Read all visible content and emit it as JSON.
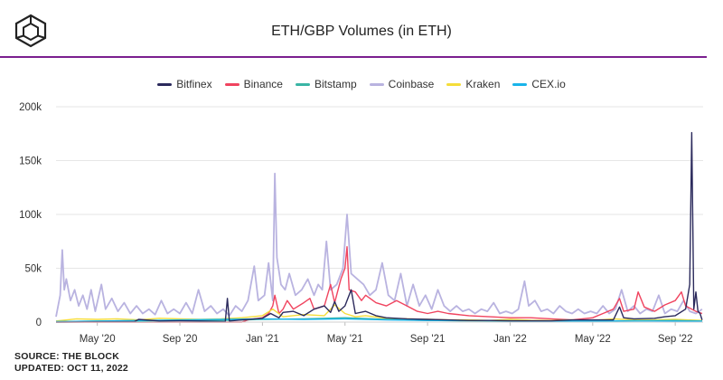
{
  "header": {
    "title": "ETH/GBP Volumes (in ETH)"
  },
  "footer": {
    "source": "SOURCE: THE BLOCK",
    "updated": "UPDATED: OCT 11, 2022"
  },
  "colors": {
    "accent_rule": "#7b1f8f",
    "gridline": "#e6e6e6"
  },
  "chart_data": {
    "type": "line",
    "title": "ETH/GBP Volumes (in ETH)",
    "xlabel": "",
    "ylabel": "",
    "ylim": [
      0,
      200000
    ],
    "y_ticks": [
      0,
      50000,
      100000,
      150000,
      200000
    ],
    "y_tick_labels": [
      "0",
      "50k",
      "100k",
      "150k",
      "200k"
    ],
    "x_tick_labels": [
      "May '20",
      "Sep '20",
      "Jan '21",
      "May '21",
      "Sep '21",
      "Jan '22",
      "May '22",
      "Sep '22"
    ],
    "x_tick_months": [
      2,
      6,
      10,
      14,
      18,
      22,
      26,
      30
    ],
    "x_range_months": [
      0.0,
      31.35
    ],
    "legend_position": "top-center",
    "series": [
      {
        "name": "Bitfinex",
        "color": "#2b2a5c",
        "points": [
          [
            0,
            0
          ],
          [
            3.8,
            500
          ],
          [
            4,
            2500
          ],
          [
            5,
            1000
          ],
          [
            6,
            1200
          ],
          [
            7,
            1000
          ],
          [
            8.2,
            500
          ],
          [
            8.3,
            22000
          ],
          [
            8.4,
            1000
          ],
          [
            9,
            2000
          ],
          [
            10,
            3500
          ],
          [
            10.4,
            8000
          ],
          [
            10.8,
            4000
          ],
          [
            11,
            9000
          ],
          [
            11.5,
            10000
          ],
          [
            12,
            6000
          ],
          [
            12.5,
            12000
          ],
          [
            13,
            15000
          ],
          [
            13.3,
            9000
          ],
          [
            13.5,
            19000
          ],
          [
            13.7,
            10000
          ],
          [
            14,
            15000
          ],
          [
            14.3,
            30000
          ],
          [
            14.5,
            8000
          ],
          [
            15,
            10000
          ],
          [
            15.5,
            6000
          ],
          [
            16,
            4000
          ],
          [
            17,
            3000
          ],
          [
            18,
            2500
          ],
          [
            19,
            2000
          ],
          [
            20,
            1500
          ],
          [
            21,
            1500
          ],
          [
            22,
            1200
          ],
          [
            23,
            1200
          ],
          [
            24,
            1200
          ],
          [
            25,
            2000
          ],
          [
            26,
            2000
          ],
          [
            27,
            2000
          ],
          [
            27.3,
            14000
          ],
          [
            27.5,
            4000
          ],
          [
            28,
            3000
          ],
          [
            29,
            3500
          ],
          [
            29.5,
            5000
          ],
          [
            30,
            6000
          ],
          [
            30.5,
            12000
          ],
          [
            30.7,
            35000
          ],
          [
            30.8,
            176000
          ],
          [
            30.9,
            12000
          ],
          [
            31,
            28000
          ],
          [
            31.1,
            10000
          ],
          [
            31.2,
            8000
          ],
          [
            31.3,
            2000
          ]
        ]
      },
      {
        "name": "Binance",
        "color": "#f0445f",
        "points": [
          [
            0,
            0
          ],
          [
            9,
            0
          ],
          [
            9.3,
            2000
          ],
          [
            10,
            4000
          ],
          [
            10.3,
            8000
          ],
          [
            10.5,
            15000
          ],
          [
            10.6,
            25000
          ],
          [
            10.8,
            8000
          ],
          [
            11,
            12000
          ],
          [
            11.2,
            20000
          ],
          [
            11.5,
            12000
          ],
          [
            12,
            18000
          ],
          [
            12.3,
            22000
          ],
          [
            12.5,
            12000
          ],
          [
            13,
            15000
          ],
          [
            13.3,
            35000
          ],
          [
            13.5,
            18000
          ],
          [
            13.8,
            40000
          ],
          [
            14,
            50000
          ],
          [
            14.1,
            70000
          ],
          [
            14.2,
            30000
          ],
          [
            14.5,
            28000
          ],
          [
            14.8,
            20000
          ],
          [
            15,
            25000
          ],
          [
            15.5,
            18000
          ],
          [
            16,
            15000
          ],
          [
            16.5,
            20000
          ],
          [
            17,
            15000
          ],
          [
            17.5,
            10000
          ],
          [
            18,
            8000
          ],
          [
            18.5,
            10000
          ],
          [
            19,
            8000
          ],
          [
            20,
            6000
          ],
          [
            21,
            5000
          ],
          [
            22,
            4000
          ],
          [
            23,
            4000
          ],
          [
            24,
            3000
          ],
          [
            25,
            2000
          ],
          [
            25.5,
            3000
          ],
          [
            26,
            4000
          ],
          [
            26.5,
            8000
          ],
          [
            27,
            12000
          ],
          [
            27.3,
            22000
          ],
          [
            27.5,
            10000
          ],
          [
            28,
            12000
          ],
          [
            28.2,
            28000
          ],
          [
            28.5,
            14000
          ],
          [
            29,
            10000
          ],
          [
            29.5,
            16000
          ],
          [
            30,
            20000
          ],
          [
            30.3,
            28000
          ],
          [
            30.5,
            15000
          ],
          [
            31,
            10000
          ],
          [
            31.3,
            8000
          ]
        ]
      },
      {
        "name": "Bitstamp",
        "color": "#3ab5a5",
        "points": [
          [
            0,
            500
          ],
          [
            2,
            800
          ],
          [
            4,
            1000
          ],
          [
            6,
            1500
          ],
          [
            8,
            1500
          ],
          [
            10,
            2500
          ],
          [
            12,
            3000
          ],
          [
            14,
            4000
          ],
          [
            16,
            2500
          ],
          [
            18,
            1500
          ],
          [
            20,
            1200
          ],
          [
            22,
            1000
          ],
          [
            24,
            1000
          ],
          [
            26,
            1000
          ],
          [
            28,
            1200
          ],
          [
            30,
            1500
          ],
          [
            31.3,
            1000
          ]
        ]
      },
      {
        "name": "Coinbase",
        "color": "#b9b3e0",
        "points": [
          [
            0,
            5000
          ],
          [
            0.2,
            25000
          ],
          [
            0.3,
            67000
          ],
          [
            0.4,
            30000
          ],
          [
            0.5,
            40000
          ],
          [
            0.7,
            20000
          ],
          [
            0.9,
            30000
          ],
          [
            1.1,
            15000
          ],
          [
            1.3,
            25000
          ],
          [
            1.5,
            12000
          ],
          [
            1.7,
            30000
          ],
          [
            1.9,
            10000
          ],
          [
            2.2,
            35000
          ],
          [
            2.4,
            12000
          ],
          [
            2.7,
            22000
          ],
          [
            3,
            10000
          ],
          [
            3.3,
            18000
          ],
          [
            3.6,
            8000
          ],
          [
            3.9,
            15000
          ],
          [
            4.2,
            8000
          ],
          [
            4.5,
            12000
          ],
          [
            4.8,
            7000
          ],
          [
            5.1,
            20000
          ],
          [
            5.4,
            8000
          ],
          [
            5.7,
            12000
          ],
          [
            6,
            8000
          ],
          [
            6.3,
            18000
          ],
          [
            6.6,
            8000
          ],
          [
            6.9,
            30000
          ],
          [
            7.2,
            10000
          ],
          [
            7.5,
            15000
          ],
          [
            7.8,
            8000
          ],
          [
            8.1,
            12000
          ],
          [
            8.4,
            6000
          ],
          [
            8.7,
            15000
          ],
          [
            9,
            10000
          ],
          [
            9.3,
            20000
          ],
          [
            9.6,
            52000
          ],
          [
            9.8,
            20000
          ],
          [
            10.1,
            25000
          ],
          [
            10.3,
            55000
          ],
          [
            10.5,
            20000
          ],
          [
            10.6,
            138000
          ],
          [
            10.7,
            60000
          ],
          [
            10.9,
            35000
          ],
          [
            11.1,
            30000
          ],
          [
            11.3,
            45000
          ],
          [
            11.6,
            25000
          ],
          [
            11.9,
            30000
          ],
          [
            12.2,
            40000
          ],
          [
            12.5,
            25000
          ],
          [
            12.7,
            35000
          ],
          [
            12.9,
            30000
          ],
          [
            13.1,
            75000
          ],
          [
            13.3,
            30000
          ],
          [
            13.6,
            35000
          ],
          [
            13.9,
            50000
          ],
          [
            14.1,
            100000
          ],
          [
            14.3,
            45000
          ],
          [
            14.6,
            40000
          ],
          [
            14.9,
            35000
          ],
          [
            15.2,
            25000
          ],
          [
            15.5,
            30000
          ],
          [
            15.8,
            55000
          ],
          [
            16.1,
            25000
          ],
          [
            16.4,
            20000
          ],
          [
            16.7,
            45000
          ],
          [
            17,
            15000
          ],
          [
            17.3,
            35000
          ],
          [
            17.6,
            15000
          ],
          [
            17.9,
            25000
          ],
          [
            18.2,
            12000
          ],
          [
            18.5,
            30000
          ],
          [
            18.8,
            15000
          ],
          [
            19.1,
            10000
          ],
          [
            19.4,
            15000
          ],
          [
            19.7,
            10000
          ],
          [
            20,
            12000
          ],
          [
            20.3,
            8000
          ],
          [
            20.6,
            12000
          ],
          [
            20.9,
            10000
          ],
          [
            21.2,
            18000
          ],
          [
            21.5,
            8000
          ],
          [
            21.8,
            10000
          ],
          [
            22.1,
            8000
          ],
          [
            22.4,
            12000
          ],
          [
            22.7,
            38000
          ],
          [
            22.9,
            15000
          ],
          [
            23.2,
            20000
          ],
          [
            23.5,
            10000
          ],
          [
            23.8,
            12000
          ],
          [
            24.1,
            8000
          ],
          [
            24.4,
            15000
          ],
          [
            24.7,
            10000
          ],
          [
            25,
            8000
          ],
          [
            25.3,
            12000
          ],
          [
            25.6,
            8000
          ],
          [
            25.9,
            10000
          ],
          [
            26.2,
            8000
          ],
          [
            26.5,
            15000
          ],
          [
            26.8,
            8000
          ],
          [
            27.1,
            12000
          ],
          [
            27.4,
            30000
          ],
          [
            27.7,
            10000
          ],
          [
            28,
            15000
          ],
          [
            28.3,
            8000
          ],
          [
            28.6,
            12000
          ],
          [
            28.9,
            10000
          ],
          [
            29.2,
            25000
          ],
          [
            29.5,
            8000
          ],
          [
            29.8,
            12000
          ],
          [
            30.1,
            10000
          ],
          [
            30.4,
            20000
          ],
          [
            30.7,
            10000
          ],
          [
            31,
            8000
          ],
          [
            31.3,
            12000
          ]
        ]
      },
      {
        "name": "Kraken",
        "color": "#f5dd3a",
        "points": [
          [
            0,
            1000
          ],
          [
            1,
            3000
          ],
          [
            2,
            2500
          ],
          [
            3,
            3000
          ],
          [
            4,
            2000
          ],
          [
            5,
            3500
          ],
          [
            6,
            3000
          ],
          [
            7,
            2500
          ],
          [
            8,
            3000
          ],
          [
            9,
            4000
          ],
          [
            10,
            6000
          ],
          [
            10.5,
            12000
          ],
          [
            11,
            5000
          ],
          [
            12,
            7000
          ],
          [
            13,
            6000
          ],
          [
            13.5,
            16000
          ],
          [
            14,
            8000
          ],
          [
            14.5,
            5000
          ],
          [
            15,
            6000
          ],
          [
            16,
            3500
          ],
          [
            17,
            3000
          ],
          [
            18,
            2500
          ],
          [
            19,
            2000
          ],
          [
            20,
            2000
          ],
          [
            21,
            1500
          ],
          [
            22,
            2500
          ],
          [
            23,
            1800
          ],
          [
            24,
            1500
          ],
          [
            25,
            2000
          ],
          [
            26,
            1500
          ],
          [
            27,
            3000
          ],
          [
            28,
            2000
          ],
          [
            29,
            2000
          ],
          [
            30,
            2500
          ],
          [
            31.3,
            1500
          ]
        ]
      },
      {
        "name": "CEX.io",
        "color": "#19b4ea",
        "points": [
          [
            0,
            500
          ],
          [
            2,
            1000
          ],
          [
            4,
            1500
          ],
          [
            6,
            2000
          ],
          [
            8,
            2500
          ],
          [
            10,
            3000
          ],
          [
            12,
            2500
          ],
          [
            14,
            3000
          ],
          [
            16,
            2000
          ],
          [
            18,
            1500
          ],
          [
            20,
            1500
          ],
          [
            22,
            1200
          ],
          [
            24,
            1000
          ],
          [
            26,
            1000
          ],
          [
            28,
            1200
          ],
          [
            30,
            1000
          ],
          [
            31.3,
            800
          ]
        ]
      }
    ]
  }
}
